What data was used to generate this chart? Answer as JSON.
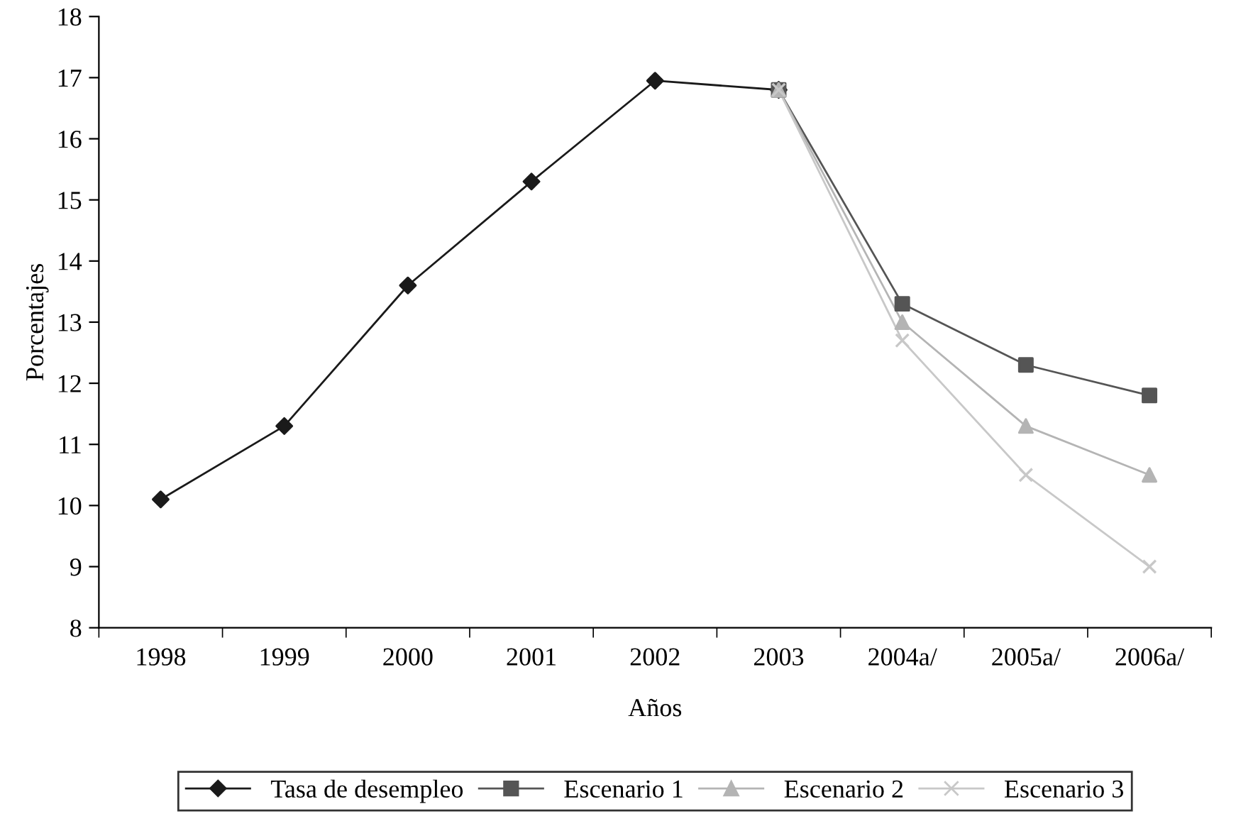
{
  "chart_data": {
    "type": "line",
    "xlabel": "Años",
    "ylabel": "Porcentajes",
    "categories": [
      "1998",
      "1999",
      "2000",
      "2001",
      "2002",
      "2003",
      "2004a/",
      "2005a/",
      "2006a/"
    ],
    "series": [
      {
        "name": "Tasa de desempleo",
        "color": "#1a1a1a",
        "marker": "diamond",
        "values": [
          10.1,
          11.3,
          13.6,
          15.3,
          16.95,
          16.8,
          null,
          null,
          null
        ]
      },
      {
        "name": "Escenario 1",
        "color": "#555555",
        "marker": "square",
        "values": [
          null,
          null,
          null,
          null,
          null,
          16.8,
          13.3,
          12.3,
          11.8
        ]
      },
      {
        "name": "Escenario 2",
        "color": "#b4b4b4",
        "marker": "triangle",
        "values": [
          null,
          null,
          null,
          null,
          null,
          16.8,
          13.0,
          11.3,
          10.5
        ]
      },
      {
        "name": "Escenario 3",
        "color": "#c8c8c8",
        "marker": "cross",
        "values": [
          null,
          null,
          null,
          null,
          null,
          16.8,
          12.7,
          10.5,
          9.0
        ]
      }
    ],
    "ylim": [
      8,
      18
    ],
    "yticks": [
      8,
      9,
      10,
      11,
      12,
      13,
      14,
      15,
      16,
      17,
      18
    ],
    "grid": false,
    "legend": "bottom",
    "line_style": "solid"
  }
}
